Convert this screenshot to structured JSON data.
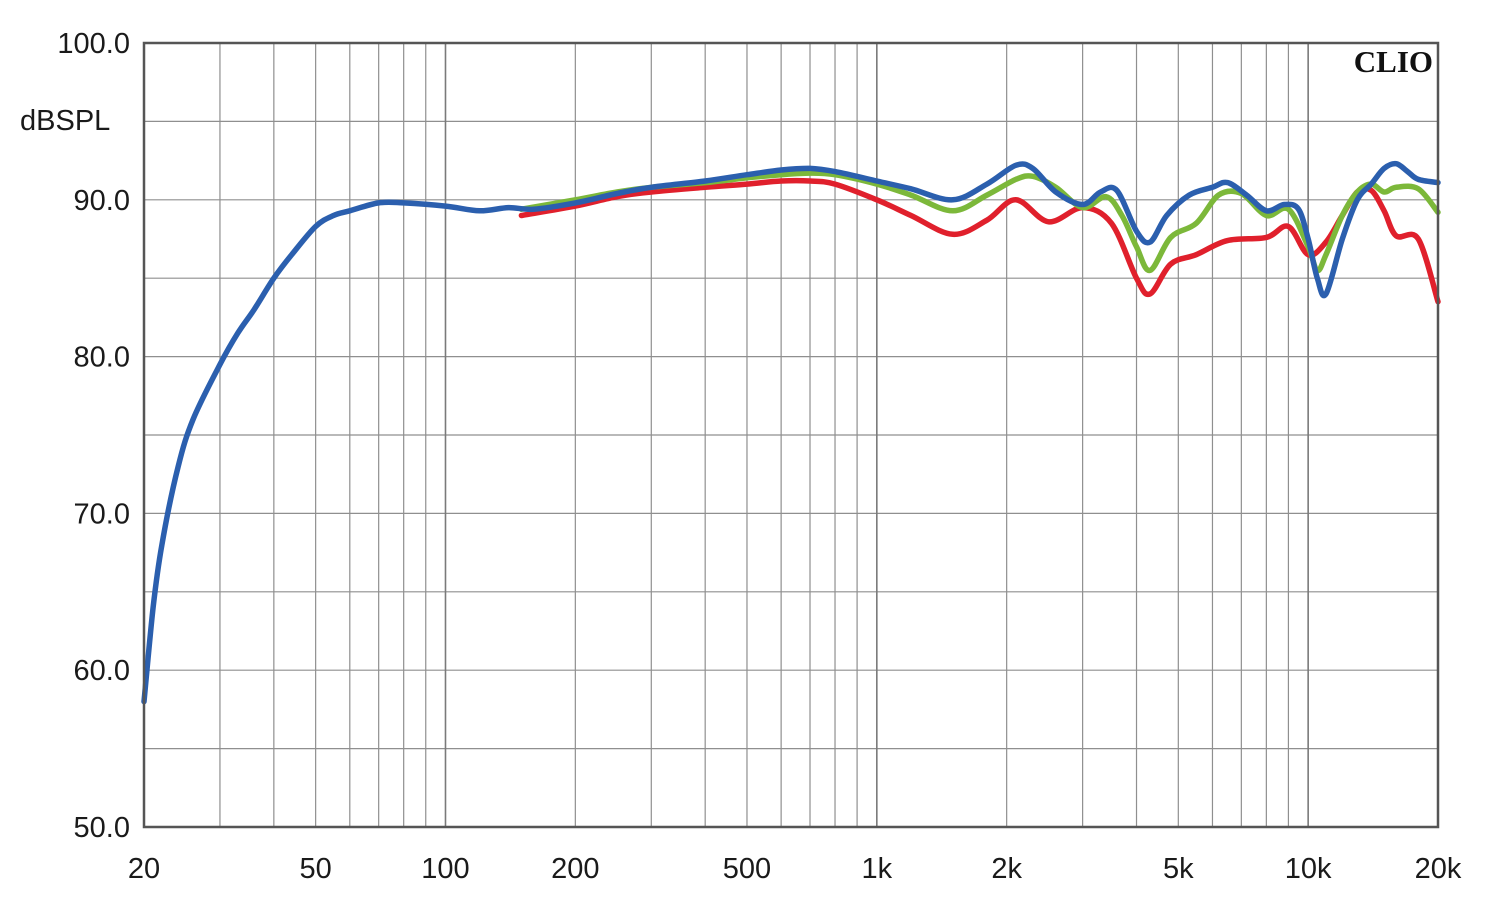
{
  "chart_data": {
    "type": "line",
    "title": "",
    "brand": "CLIO",
    "xlabel": "",
    "ylabel": "dBSPL",
    "x_scale": "log",
    "xlim": [
      20,
      20000
    ],
    "ylim": [
      50,
      100
    ],
    "grid": true,
    "y_ticks": [
      {
        "value": 50,
        "label": "50.0"
      },
      {
        "value": 60,
        "label": "60.0"
      },
      {
        "value": 70,
        "label": "70.0"
      },
      {
        "value": 80,
        "label": "80.0"
      },
      {
        "value": 90,
        "label": "90.0"
      },
      {
        "value": 100,
        "label": "100.0"
      }
    ],
    "x_ticks": [
      {
        "value": 20,
        "label": "20"
      },
      {
        "value": 50,
        "label": "50"
      },
      {
        "value": 100,
        "label": "100"
      },
      {
        "value": 200,
        "label": "200"
      },
      {
        "value": 500,
        "label": "500"
      },
      {
        "value": 1000,
        "label": "1k"
      },
      {
        "value": 2000,
        "label": "2k"
      },
      {
        "value": 5000,
        "label": "5k"
      },
      {
        "value": 10000,
        "label": "10k"
      },
      {
        "value": 20000,
        "label": "20k"
      }
    ],
    "series": [
      {
        "color": "#e0202c",
        "x": [
          150,
          200,
          250,
          300,
          400,
          500,
          600,
          700,
          800,
          1000,
          1200,
          1500,
          1800,
          2100,
          2500,
          3000,
          3500,
          4000,
          4300,
          4800,
          5500,
          6500,
          8000,
          9000,
          10000,
          11000,
          12000,
          13000,
          14000,
          15000,
          16000,
          18000,
          20000
        ],
        "y": [
          89.0,
          89.6,
          90.2,
          90.5,
          90.8,
          91.0,
          91.2,
          91.2,
          91.0,
          90.0,
          89.0,
          87.8,
          88.7,
          90.0,
          88.6,
          89.5,
          88.5,
          85.0,
          84.0,
          85.9,
          86.5,
          87.4,
          87.6,
          88.3,
          86.5,
          87.3,
          89.0,
          90.5,
          90.6,
          89.3,
          87.7,
          87.5,
          83.5
        ]
      },
      {
        "color": "#7cb83a",
        "x": [
          150,
          200,
          250,
          300,
          400,
          500,
          600,
          700,
          800,
          1000,
          1200,
          1500,
          1800,
          2100,
          2300,
          2600,
          3000,
          3400,
          3700,
          4000,
          4300,
          4800,
          5500,
          6200,
          7000,
          8000,
          9000,
          10000,
          10500,
          11000,
          12000,
          13000,
          14000,
          15000,
          16000,
          18000,
          20000
        ],
        "y": [
          89.4,
          90.0,
          90.5,
          90.8,
          91.1,
          91.4,
          91.6,
          91.7,
          91.6,
          91.0,
          90.3,
          89.3,
          90.3,
          91.3,
          91.5,
          90.8,
          89.5,
          90.2,
          89.0,
          87.0,
          85.5,
          87.6,
          88.5,
          90.3,
          90.4,
          89.0,
          89.4,
          87.0,
          85.5,
          86.5,
          89.0,
          90.5,
          91.0,
          90.5,
          90.8,
          90.7,
          89.2
        ]
      },
      {
        "color": "#2b5fae",
        "x": [
          20,
          21,
          22,
          24,
          26,
          30,
          33,
          36,
          40,
          44,
          50,
          55,
          60,
          70,
          80,
          100,
          120,
          140,
          160,
          200,
          250,
          300,
          400,
          500,
          600,
          700,
          800,
          1000,
          1200,
          1500,
          1800,
          2100,
          2300,
          2600,
          3000,
          3300,
          3600,
          4000,
          4300,
          4700,
          5300,
          6000,
          6500,
          7200,
          8000,
          8800,
          9500,
          10000,
          10500,
          11000,
          12000,
          13000,
          14000,
          15000,
          16000,
          17000,
          18000,
          20000
        ],
        "y": [
          58.0,
          64.0,
          68.0,
          73.0,
          76.0,
          79.5,
          81.5,
          83.0,
          85.0,
          86.5,
          88.3,
          89.0,
          89.3,
          89.8,
          89.8,
          89.6,
          89.3,
          89.5,
          89.4,
          89.8,
          90.4,
          90.8,
          91.2,
          91.6,
          91.9,
          92.0,
          91.8,
          91.2,
          90.7,
          90.0,
          91.0,
          92.2,
          92.0,
          90.5,
          89.7,
          90.5,
          90.6,
          88.0,
          87.3,
          89.0,
          90.3,
          90.8,
          91.1,
          90.3,
          89.3,
          89.7,
          89.4,
          87.5,
          85.0,
          84.0,
          87.5,
          90.0,
          91.0,
          92.0,
          92.3,
          91.8,
          91.3,
          91.1
        ]
      }
    ]
  }
}
